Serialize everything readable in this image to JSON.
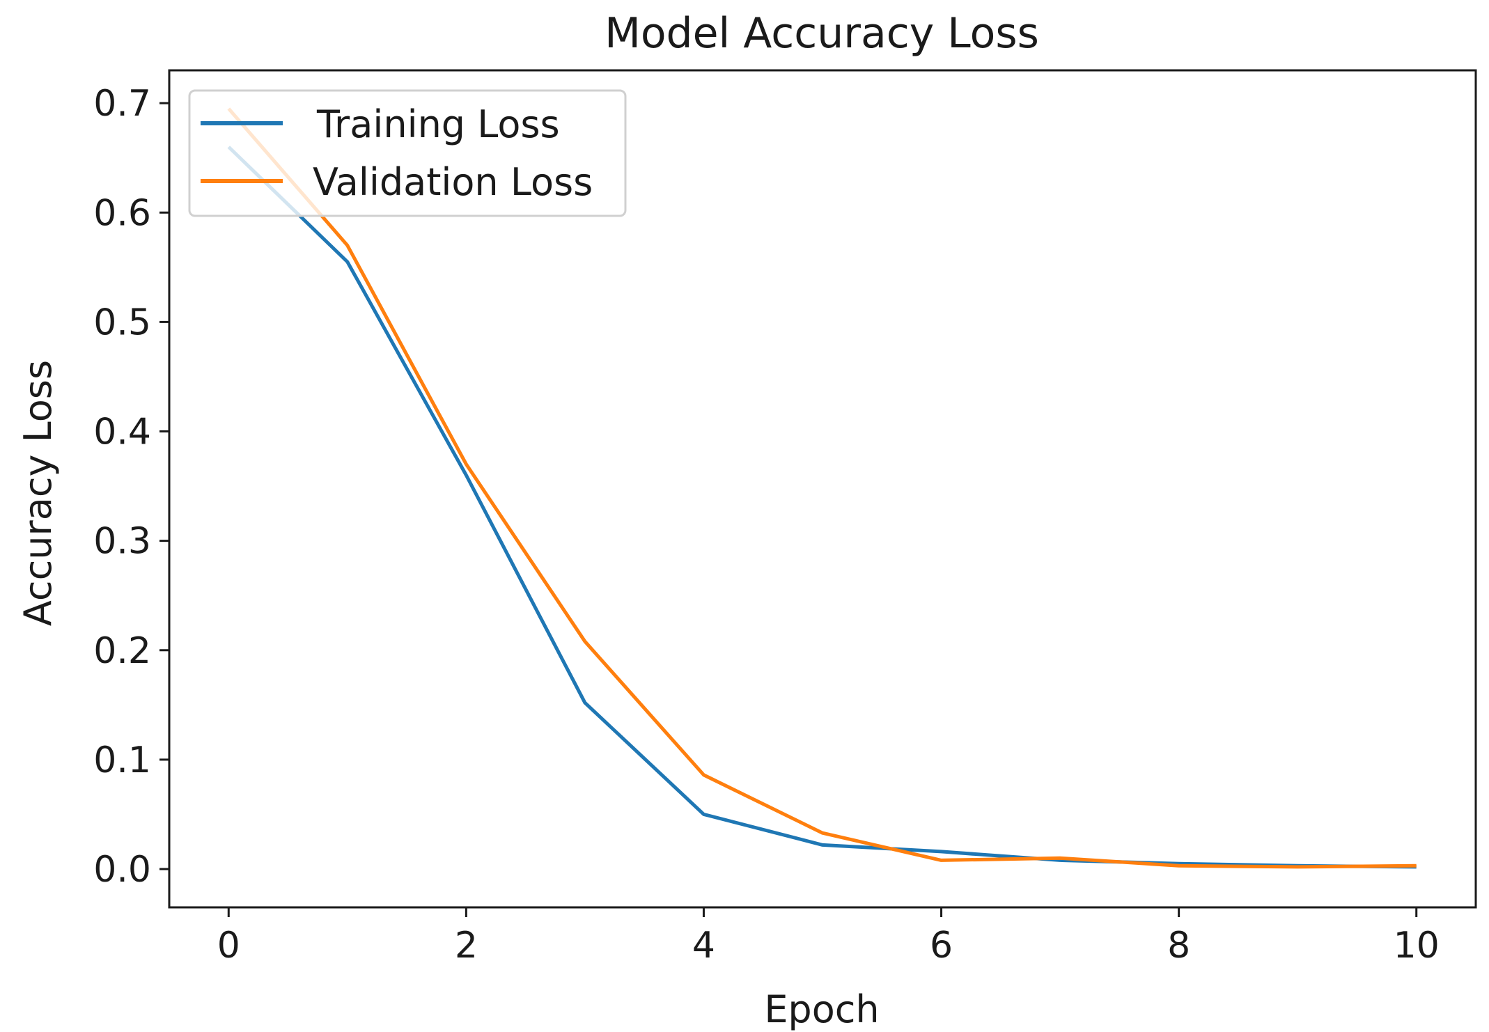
{
  "chart_data": {
    "type": "line",
    "title": "Model Accuracy Loss",
    "xlabel": "Epoch",
    "ylabel": "Accuracy Loss",
    "xlim": [
      -0.5,
      10.5
    ],
    "ylim": [
      -0.035,
      0.73
    ],
    "xticks": [
      0,
      2,
      4,
      6,
      8,
      10
    ],
    "xtick_labels": [
      "0",
      "2",
      "4",
      "6",
      "8",
      "10"
    ],
    "yticks": [
      0.0,
      0.1,
      0.2,
      0.3,
      0.4,
      0.5,
      0.6,
      0.7
    ],
    "ytick_labels": [
      "0.0",
      "0.1",
      "0.2",
      "0.3",
      "0.4",
      "0.5",
      "0.6",
      "0.7"
    ],
    "grid": false,
    "legend_position": "upper-left",
    "x": [
      0,
      1,
      2,
      3,
      4,
      5,
      6,
      7,
      8,
      9,
      10
    ],
    "series": [
      {
        "name": "Training Loss",
        "color": "#1f77b4",
        "values": [
          0.66,
          0.555,
          0.36,
          0.152,
          0.05,
          0.022,
          0.016,
          0.008,
          0.005,
          0.003,
          0.002
        ]
      },
      {
        "name": "Validation Loss",
        "color": "#ff7f0e",
        "values": [
          0.695,
          0.57,
          0.37,
          0.208,
          0.086,
          0.033,
          0.008,
          0.01,
          0.003,
          0.002,
          0.003
        ]
      }
    ]
  }
}
